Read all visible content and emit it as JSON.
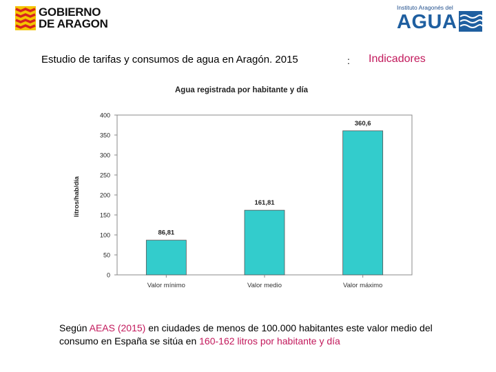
{
  "header": {
    "gov_logo": {
      "line1": "GOBIERNO",
      "line2": "DE ARAGON"
    },
    "agua_logo": {
      "institute": "Instituto Aragonés del",
      "word": "AGUA"
    },
    "study_title": "Estudio de tarifas y consumos de agua en Aragón. 2015",
    "separator": ":",
    "section": "Indicadores"
  },
  "colors": {
    "bar": "#33cccc",
    "accent": "#c2185b",
    "agua_blue": "#1f5fa0"
  },
  "chart_data": {
    "type": "bar",
    "title": "Agua registrada por habitante y día",
    "ylabel": "litros/hab/día",
    "xlabel": "",
    "categories": [
      "Valor mínimo",
      "Valor medio",
      "Valor máximo"
    ],
    "values": [
      86.81,
      161.81,
      360.6
    ],
    "value_labels": [
      "86,81",
      "161,81",
      "360,6"
    ],
    "ylim": [
      0,
      400
    ],
    "yticks": [
      0,
      50,
      100,
      150,
      200,
      250,
      300,
      350,
      400
    ],
    "grid": false
  },
  "note": {
    "part1": "Según ",
    "highlight1": "AEAS (2015)",
    "part2": " en ciudades de menos de 100.000 habitantes este valor medio del consumo en España se sitúa en ",
    "highlight2": "160-162 litros por habitante y día"
  }
}
